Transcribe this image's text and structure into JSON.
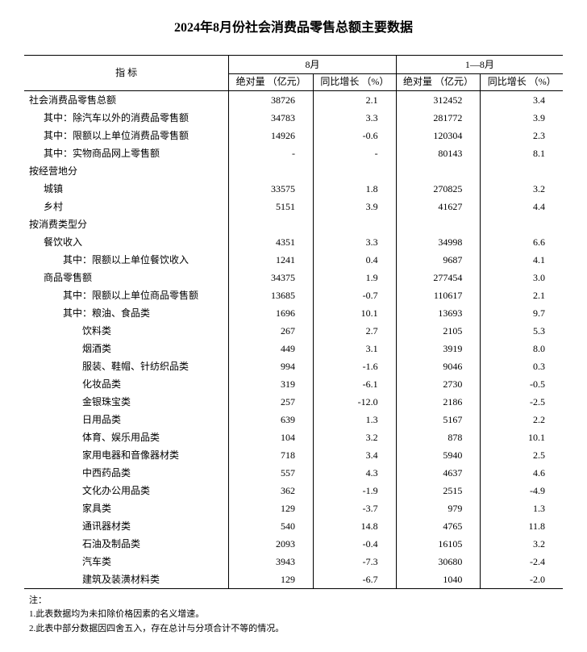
{
  "title": "2024年8月份社会消费品零售总额主要数据",
  "headers": {
    "indicator": "指  标",
    "period1": "8月",
    "period2": "1—8月",
    "abs": "绝对量\n（亿元）",
    "yoy": "同比增长\n（%）"
  },
  "rows": [
    {
      "indent": 0,
      "label": "社会消费品零售总额",
      "v": [
        "38726",
        "2.1",
        "312452",
        "3.4"
      ]
    },
    {
      "indent": 1,
      "label": "其中：除汽车以外的消费品零售额",
      "v": [
        "34783",
        "3.3",
        "281772",
        "3.9"
      ]
    },
    {
      "indent": 1,
      "label": "其中：限额以上单位消费品零售额",
      "v": [
        "14926",
        "-0.6",
        "120304",
        "2.3"
      ]
    },
    {
      "indent": 1,
      "label": "其中：实物商品网上零售额",
      "v": [
        "-",
        "-",
        "80143",
        "8.1"
      ]
    },
    {
      "indent": 0,
      "label": "按经营地分",
      "v": [
        "",
        "",
        "",
        ""
      ]
    },
    {
      "indent": 1,
      "label": "城镇",
      "v": [
        "33575",
        "1.8",
        "270825",
        "3.2"
      ]
    },
    {
      "indent": 1,
      "label": "乡村",
      "v": [
        "5151",
        "3.9",
        "41627",
        "4.4"
      ]
    },
    {
      "indent": 0,
      "label": "按消费类型分",
      "v": [
        "",
        "",
        "",
        ""
      ]
    },
    {
      "indent": 1,
      "label": "餐饮收入",
      "v": [
        "4351",
        "3.3",
        "34998",
        "6.6"
      ]
    },
    {
      "indent": 2,
      "label": "其中：限额以上单位餐饮收入",
      "v": [
        "1241",
        "0.4",
        "9687",
        "4.1"
      ]
    },
    {
      "indent": 1,
      "label": "商品零售额",
      "v": [
        "34375",
        "1.9",
        "277454",
        "3.0"
      ]
    },
    {
      "indent": 2,
      "label": "其中：限额以上单位商品零售额",
      "v": [
        "13685",
        "-0.7",
        "110617",
        "2.1"
      ]
    },
    {
      "indent": 2,
      "label": "其中：粮油、食品类",
      "v": [
        "1696",
        "10.1",
        "13693",
        "9.7"
      ]
    },
    {
      "indent": 3,
      "label": "饮料类",
      "v": [
        "267",
        "2.7",
        "2105",
        "5.3"
      ]
    },
    {
      "indent": 3,
      "label": "烟酒类",
      "v": [
        "449",
        "3.1",
        "3919",
        "8.0"
      ]
    },
    {
      "indent": 3,
      "label": "服装、鞋帽、针纺织品类",
      "v": [
        "994",
        "-1.6",
        "9046",
        "0.3"
      ]
    },
    {
      "indent": 3,
      "label": "化妆品类",
      "v": [
        "319",
        "-6.1",
        "2730",
        "-0.5"
      ]
    },
    {
      "indent": 3,
      "label": "金银珠宝类",
      "v": [
        "257",
        "-12.0",
        "2186",
        "-2.5"
      ]
    },
    {
      "indent": 3,
      "label": "日用品类",
      "v": [
        "639",
        "1.3",
        "5167",
        "2.2"
      ]
    },
    {
      "indent": 3,
      "label": "体育、娱乐用品类",
      "v": [
        "104",
        "3.2",
        "878",
        "10.1"
      ]
    },
    {
      "indent": 3,
      "label": "家用电器和音像器材类",
      "v": [
        "718",
        "3.4",
        "5940",
        "2.5"
      ]
    },
    {
      "indent": 3,
      "label": "中西药品类",
      "v": [
        "557",
        "4.3",
        "4637",
        "4.6"
      ]
    },
    {
      "indent": 3,
      "label": "文化办公用品类",
      "v": [
        "362",
        "-1.9",
        "2515",
        "-4.9"
      ]
    },
    {
      "indent": 3,
      "label": "家具类",
      "v": [
        "129",
        "-3.7",
        "979",
        "1.3"
      ]
    },
    {
      "indent": 3,
      "label": "通讯器材类",
      "v": [
        "540",
        "14.8",
        "4765",
        "11.8"
      ]
    },
    {
      "indent": 3,
      "label": "石油及制品类",
      "v": [
        "2093",
        "-0.4",
        "16105",
        "3.2"
      ]
    },
    {
      "indent": 3,
      "label": "汽车类",
      "v": [
        "3943",
        "-7.3",
        "30680",
        "-2.4"
      ]
    },
    {
      "indent": 3,
      "label": "建筑及装潢材料类",
      "v": [
        "129",
        "-6.7",
        "1040",
        "-2.0"
      ]
    }
  ],
  "notes": {
    "header": "注：",
    "items": [
      "1.此表数据均为未扣除价格因素的名义增速。",
      "2.此表中部分数据因四舍五入，存在总计与分项合计不等的情况。"
    ]
  },
  "colors": {
    "text": "#000000",
    "background": "#ffffff",
    "rule": "#000000"
  },
  "typography": {
    "body_fontsize_pt": 9,
    "title_fontsize_pt": 12,
    "font_family": "SimSun"
  }
}
